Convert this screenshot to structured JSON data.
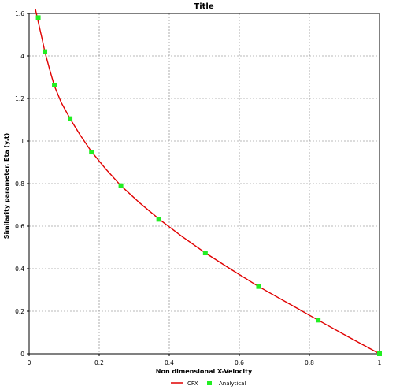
{
  "chart_data": {
    "type": "line",
    "title": "Title",
    "xlabel": "Non dimensional X-Velocity",
    "ylabel": "Similarity parameter, Eta (y,t)",
    "xlim": [
      0,
      1
    ],
    "ylim": [
      0,
      1.6
    ],
    "grid": true,
    "legend_position": "bottom-center",
    "x_ticks": [
      "0",
      "0.2",
      "0.4",
      "0.6",
      "0.8",
      "1"
    ],
    "y_ticks": [
      "0",
      "0.2",
      "0.4",
      "0.6",
      "0.8",
      "1",
      "1.2",
      "1.4",
      "1.6"
    ],
    "series": [
      {
        "name": "CFX",
        "style": "line",
        "color": "#e00000",
        "points": [
          [
            0.018,
            1.62
          ],
          [
            0.026,
            1.56
          ],
          [
            0.037,
            1.48
          ],
          [
            0.045,
            1.42
          ],
          [
            0.058,
            1.34
          ],
          [
            0.072,
            1.26
          ],
          [
            0.092,
            1.18
          ],
          [
            0.117,
            1.105
          ],
          [
            0.145,
            1.03
          ],
          [
            0.178,
            0.95
          ],
          [
            0.218,
            0.87
          ],
          [
            0.262,
            0.79
          ],
          [
            0.315,
            0.71
          ],
          [
            0.372,
            0.632
          ],
          [
            0.435,
            0.553
          ],
          [
            0.503,
            0.474
          ],
          [
            0.578,
            0.395
          ],
          [
            0.655,
            0.316
          ],
          [
            0.74,
            0.237
          ],
          [
            0.825,
            0.158
          ],
          [
            0.912,
            0.079
          ],
          [
            1.0,
            0.0
          ]
        ]
      },
      {
        "name": "Analytical",
        "style": "markers",
        "color": "#22ee22",
        "points": [
          [
            0.026,
            1.58
          ],
          [
            0.045,
            1.42
          ],
          [
            0.072,
            1.263
          ],
          [
            0.117,
            1.105
          ],
          [
            0.178,
            0.948
          ],
          [
            0.262,
            0.79
          ],
          [
            0.37,
            0.632
          ],
          [
            0.503,
            0.474
          ],
          [
            0.655,
            0.316
          ],
          [
            0.825,
            0.158
          ],
          [
            1.0,
            0.0
          ]
        ]
      }
    ]
  }
}
